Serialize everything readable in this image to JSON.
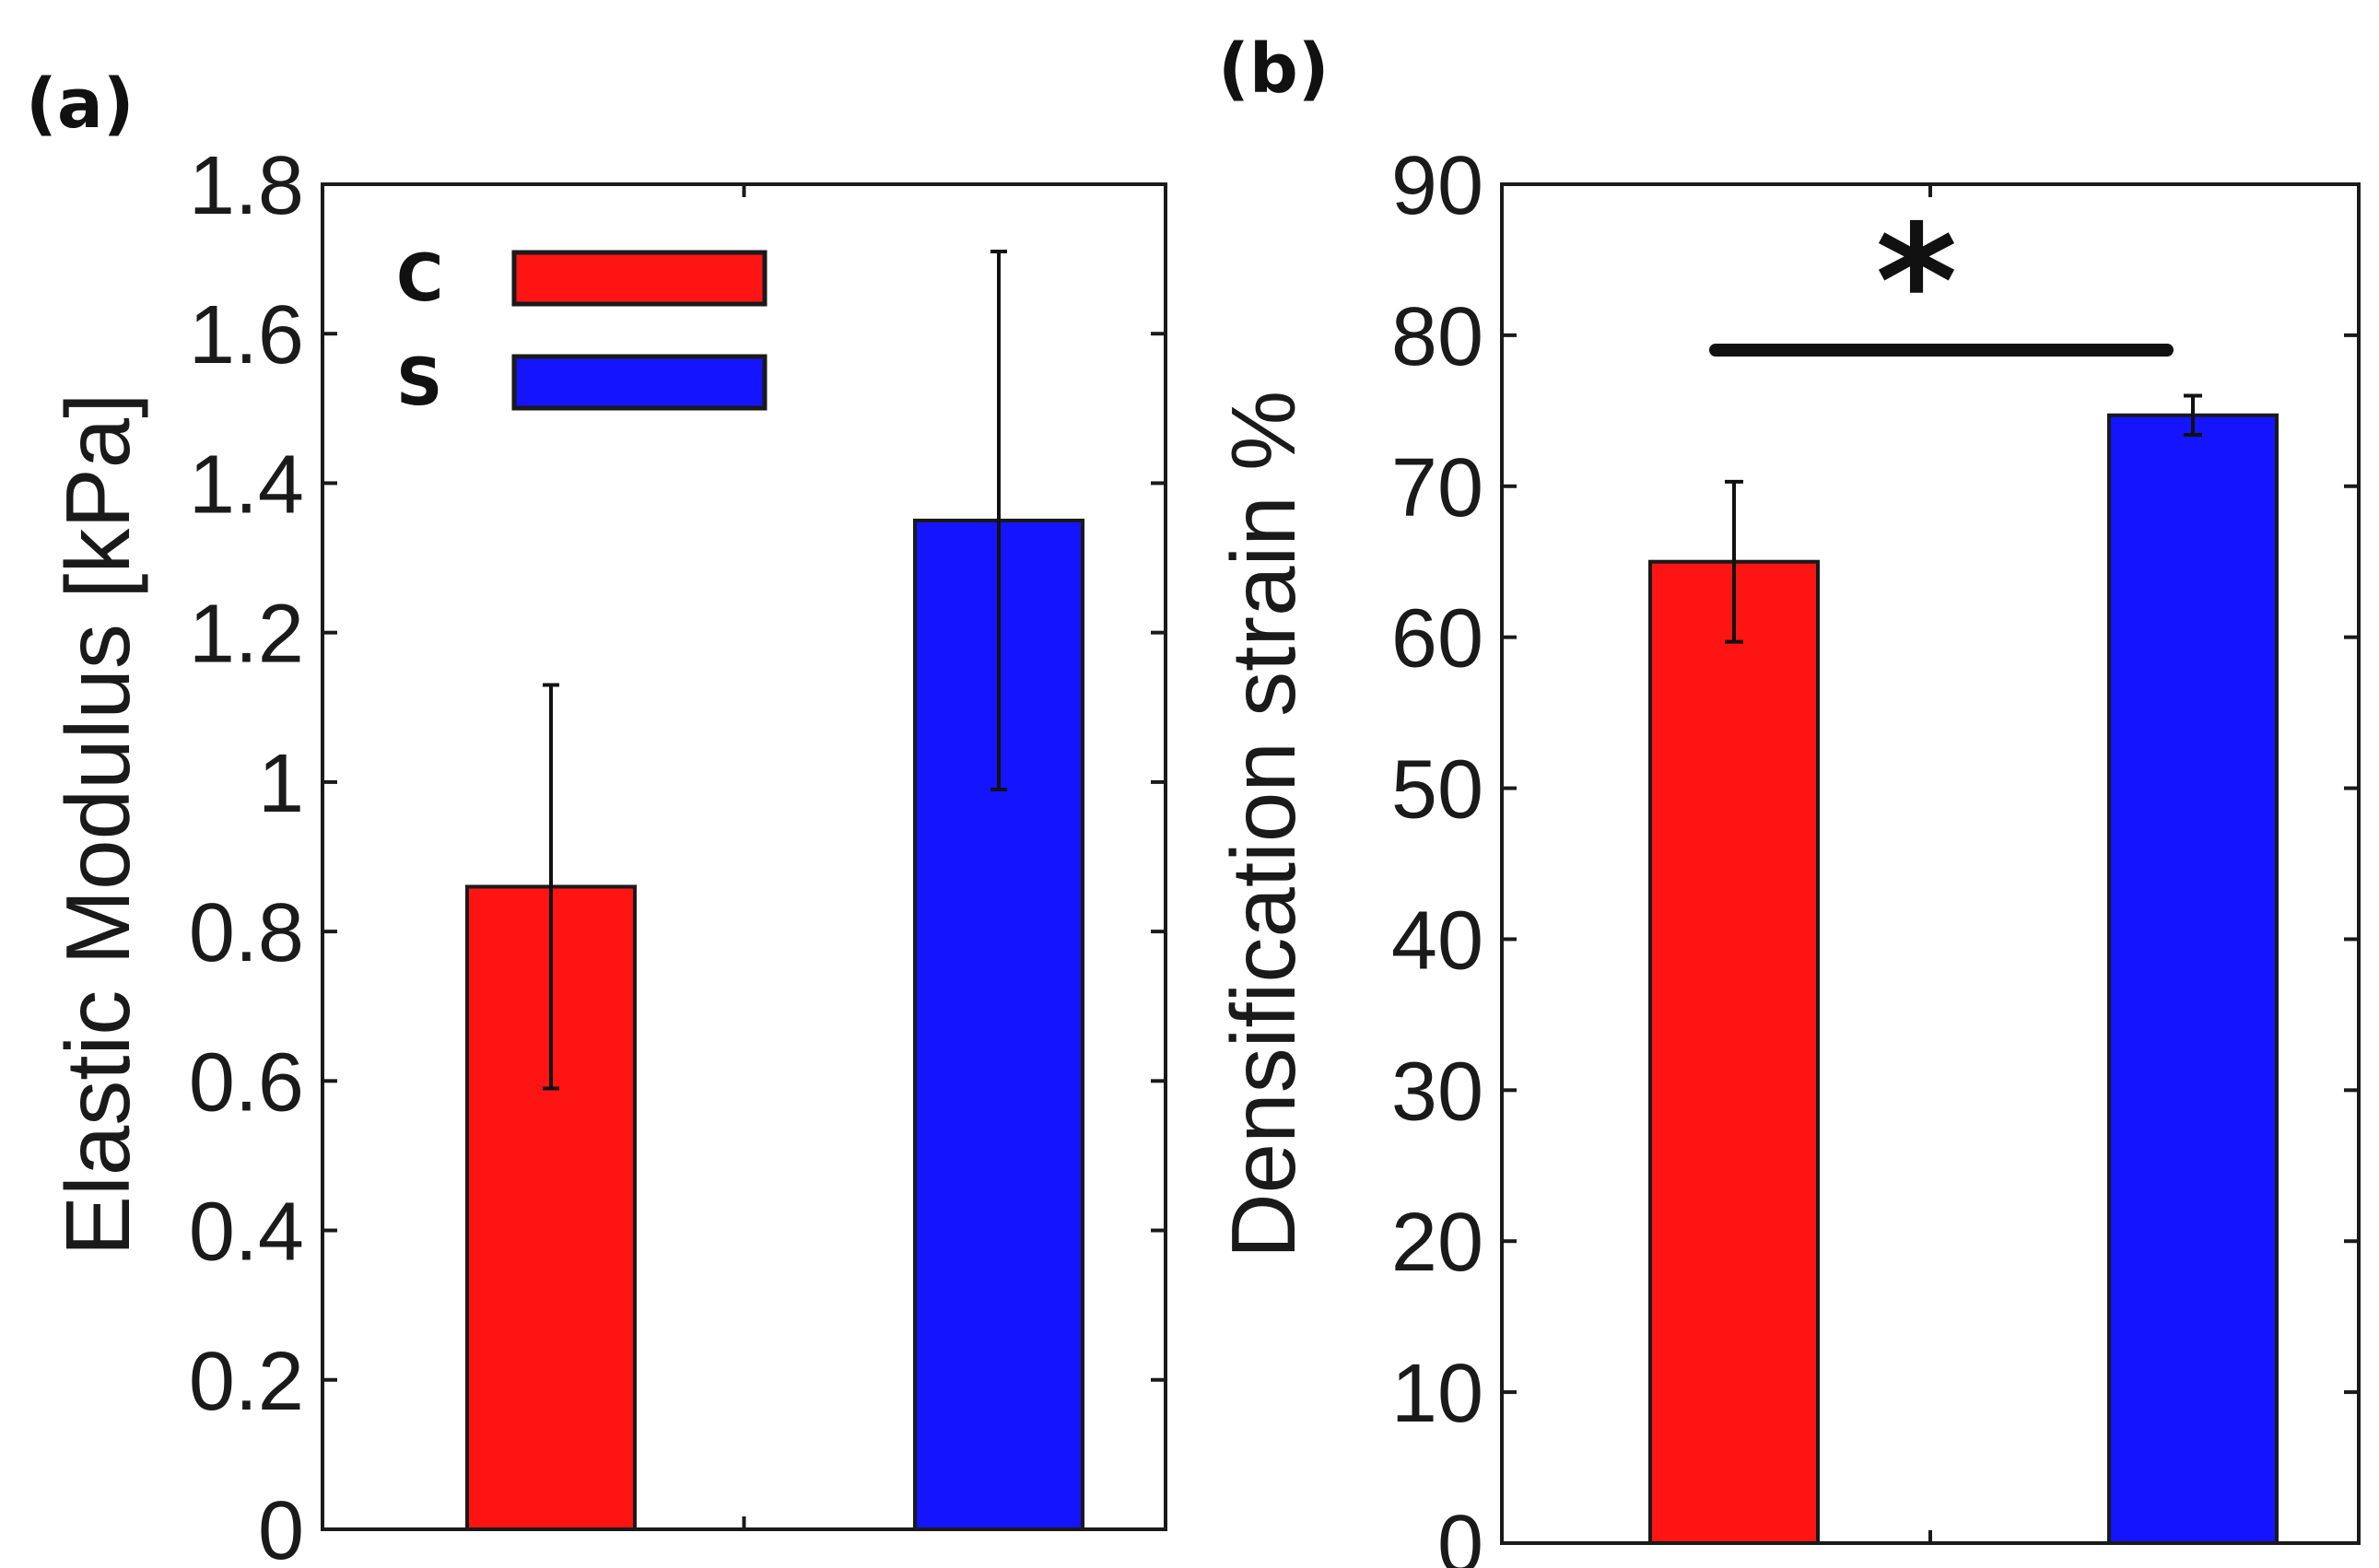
{
  "chart_data": [
    {
      "type": "bar",
      "panel_label": "(a)",
      "ylabel": "Elastic Modulus [kPa]",
      "xlabel": "",
      "ylim": [
        0,
        1.8
      ],
      "yticks": [
        "0",
        "0.2",
        "0.4",
        "0.6",
        "0.8",
        "1",
        "1.2",
        "1.4",
        "1.6",
        "1.8"
      ],
      "categories": [
        "C",
        "S"
      ],
      "values": [
        0.86,
        1.35
      ],
      "errors": [
        0.27,
        0.36
      ],
      "colors": [
        "#ff1414",
        "#1414ff"
      ],
      "legend": {
        "placement": "top-left",
        "entries": [
          {
            "label": "C",
            "color": "#ff1414"
          },
          {
            "label": "S",
            "color": "#1414ff"
          }
        ]
      }
    },
    {
      "type": "bar",
      "panel_label": "(b)",
      "ylabel": "Densification strain %",
      "xlabel": "",
      "ylim": [
        0,
        90
      ],
      "yticks": [
        "0",
        "10",
        "20",
        "30",
        "40",
        "50",
        "60",
        "70",
        "80",
        "90"
      ],
      "categories": [
        "C",
        "S"
      ],
      "values": [
        65,
        74.7
      ],
      "errors": [
        5.3,
        1.3
      ],
      "colors": [
        "#ff1414",
        "#1414ff"
      ],
      "significance": {
        "label": "*",
        "between": [
          "C",
          "S"
        ]
      }
    }
  ]
}
